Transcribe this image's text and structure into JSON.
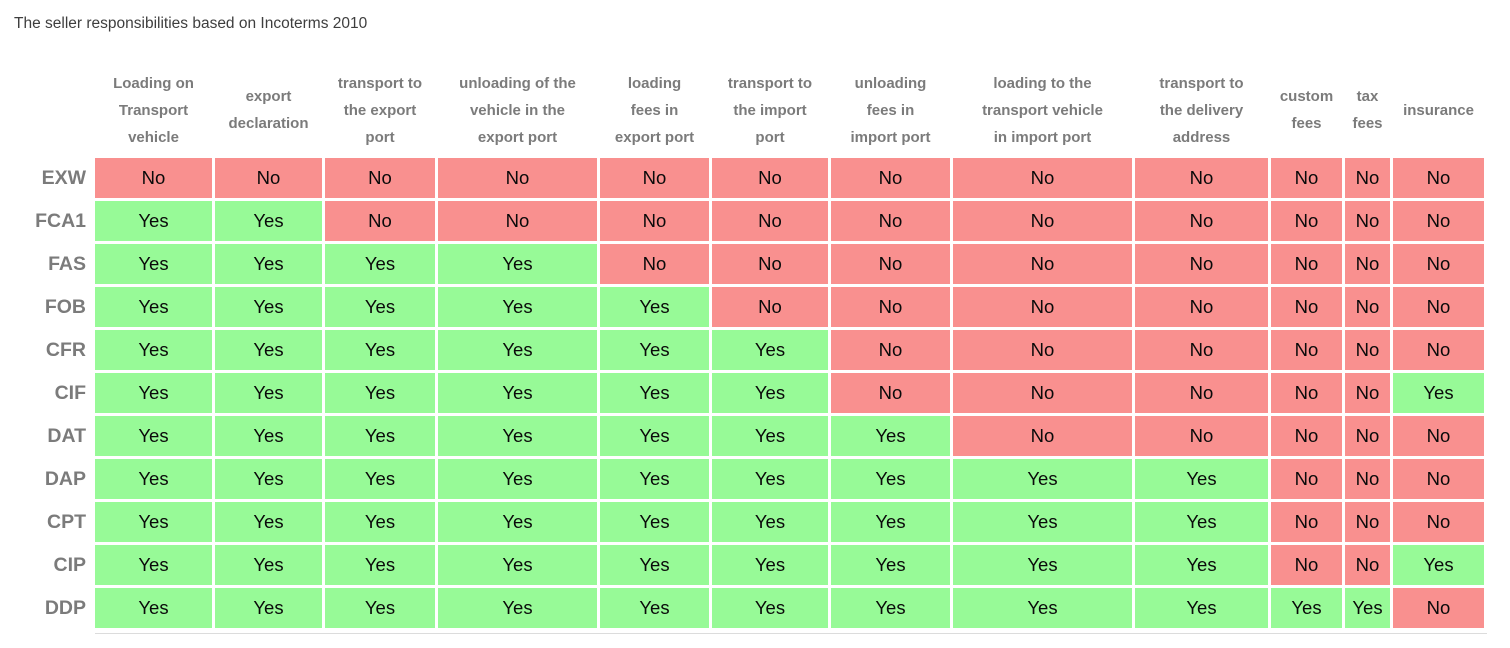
{
  "title": "The seller responsibilities based on Incoterms 2010",
  "chart_data": {
    "type": "table",
    "title": "The seller responsibilities based on Incoterms 2010",
    "columns": [
      "Loading on\nTransport\nvehicle",
      "export\ndeclaration",
      "transport to\nthe export\nport",
      "unloading of the\nvehicle in the\nexport port",
      "loading\nfees in\nexport port",
      "transport to\nthe import\nport",
      "unloading\nfees in\nimport port",
      "loading to the\ntransport vehicle\nin import port",
      "transport to\nthe delivery\naddress",
      "custom\nfees",
      "tax\nfees",
      "insurance"
    ],
    "rows": [
      {
        "label": "EXW",
        "values": [
          "No",
          "No",
          "No",
          "No",
          "No",
          "No",
          "No",
          "No",
          "No",
          "No",
          "No",
          "No"
        ]
      },
      {
        "label": "FCA1",
        "values": [
          "Yes",
          "Yes",
          "No",
          "No",
          "No",
          "No",
          "No",
          "No",
          "No",
          "No",
          "No",
          "No"
        ]
      },
      {
        "label": "FAS",
        "values": [
          "Yes",
          "Yes",
          "Yes",
          "Yes",
          "No",
          "No",
          "No",
          "No",
          "No",
          "No",
          "No",
          "No"
        ]
      },
      {
        "label": "FOB",
        "values": [
          "Yes",
          "Yes",
          "Yes",
          "Yes",
          "Yes",
          "No",
          "No",
          "No",
          "No",
          "No",
          "No",
          "No"
        ]
      },
      {
        "label": "CFR",
        "values": [
          "Yes",
          "Yes",
          "Yes",
          "Yes",
          "Yes",
          "Yes",
          "No",
          "No",
          "No",
          "No",
          "No",
          "No"
        ]
      },
      {
        "label": "CIF",
        "values": [
          "Yes",
          "Yes",
          "Yes",
          "Yes",
          "Yes",
          "Yes",
          "No",
          "No",
          "No",
          "No",
          "No",
          "Yes"
        ]
      },
      {
        "label": "DAT",
        "values": [
          "Yes",
          "Yes",
          "Yes",
          "Yes",
          "Yes",
          "Yes",
          "Yes",
          "No",
          "No",
          "No",
          "No",
          "No"
        ]
      },
      {
        "label": "DAP",
        "values": [
          "Yes",
          "Yes",
          "Yes",
          "Yes",
          "Yes",
          "Yes",
          "Yes",
          "Yes",
          "Yes",
          "No",
          "No",
          "No"
        ]
      },
      {
        "label": "CPT",
        "values": [
          "Yes",
          "Yes",
          "Yes",
          "Yes",
          "Yes",
          "Yes",
          "Yes",
          "Yes",
          "Yes",
          "No",
          "No",
          "No"
        ]
      },
      {
        "label": "CIP",
        "values": [
          "Yes",
          "Yes",
          "Yes",
          "Yes",
          "Yes",
          "Yes",
          "Yes",
          "Yes",
          "Yes",
          "No",
          "No",
          "Yes"
        ]
      },
      {
        "label": "DDP",
        "values": [
          "Yes",
          "Yes",
          "Yes",
          "Yes",
          "Yes",
          "Yes",
          "Yes",
          "Yes",
          "Yes",
          "Yes",
          "Yes",
          "No"
        ]
      }
    ],
    "cell_values_legend": {
      "yes": "Yes",
      "no": "No"
    },
    "colors": {
      "yes_bg": "#97FA97",
      "no_bg": "#F9908F",
      "header_text": "#7B7B7B",
      "row_label_text": "#7B7B7B",
      "cell_text": "#0A0A0A",
      "title_text": "#3E3E3E"
    },
    "layout_hints": {
      "legend_position": "none",
      "grid": "white gaps between colored cells",
      "row_label_alignment": "right"
    }
  }
}
